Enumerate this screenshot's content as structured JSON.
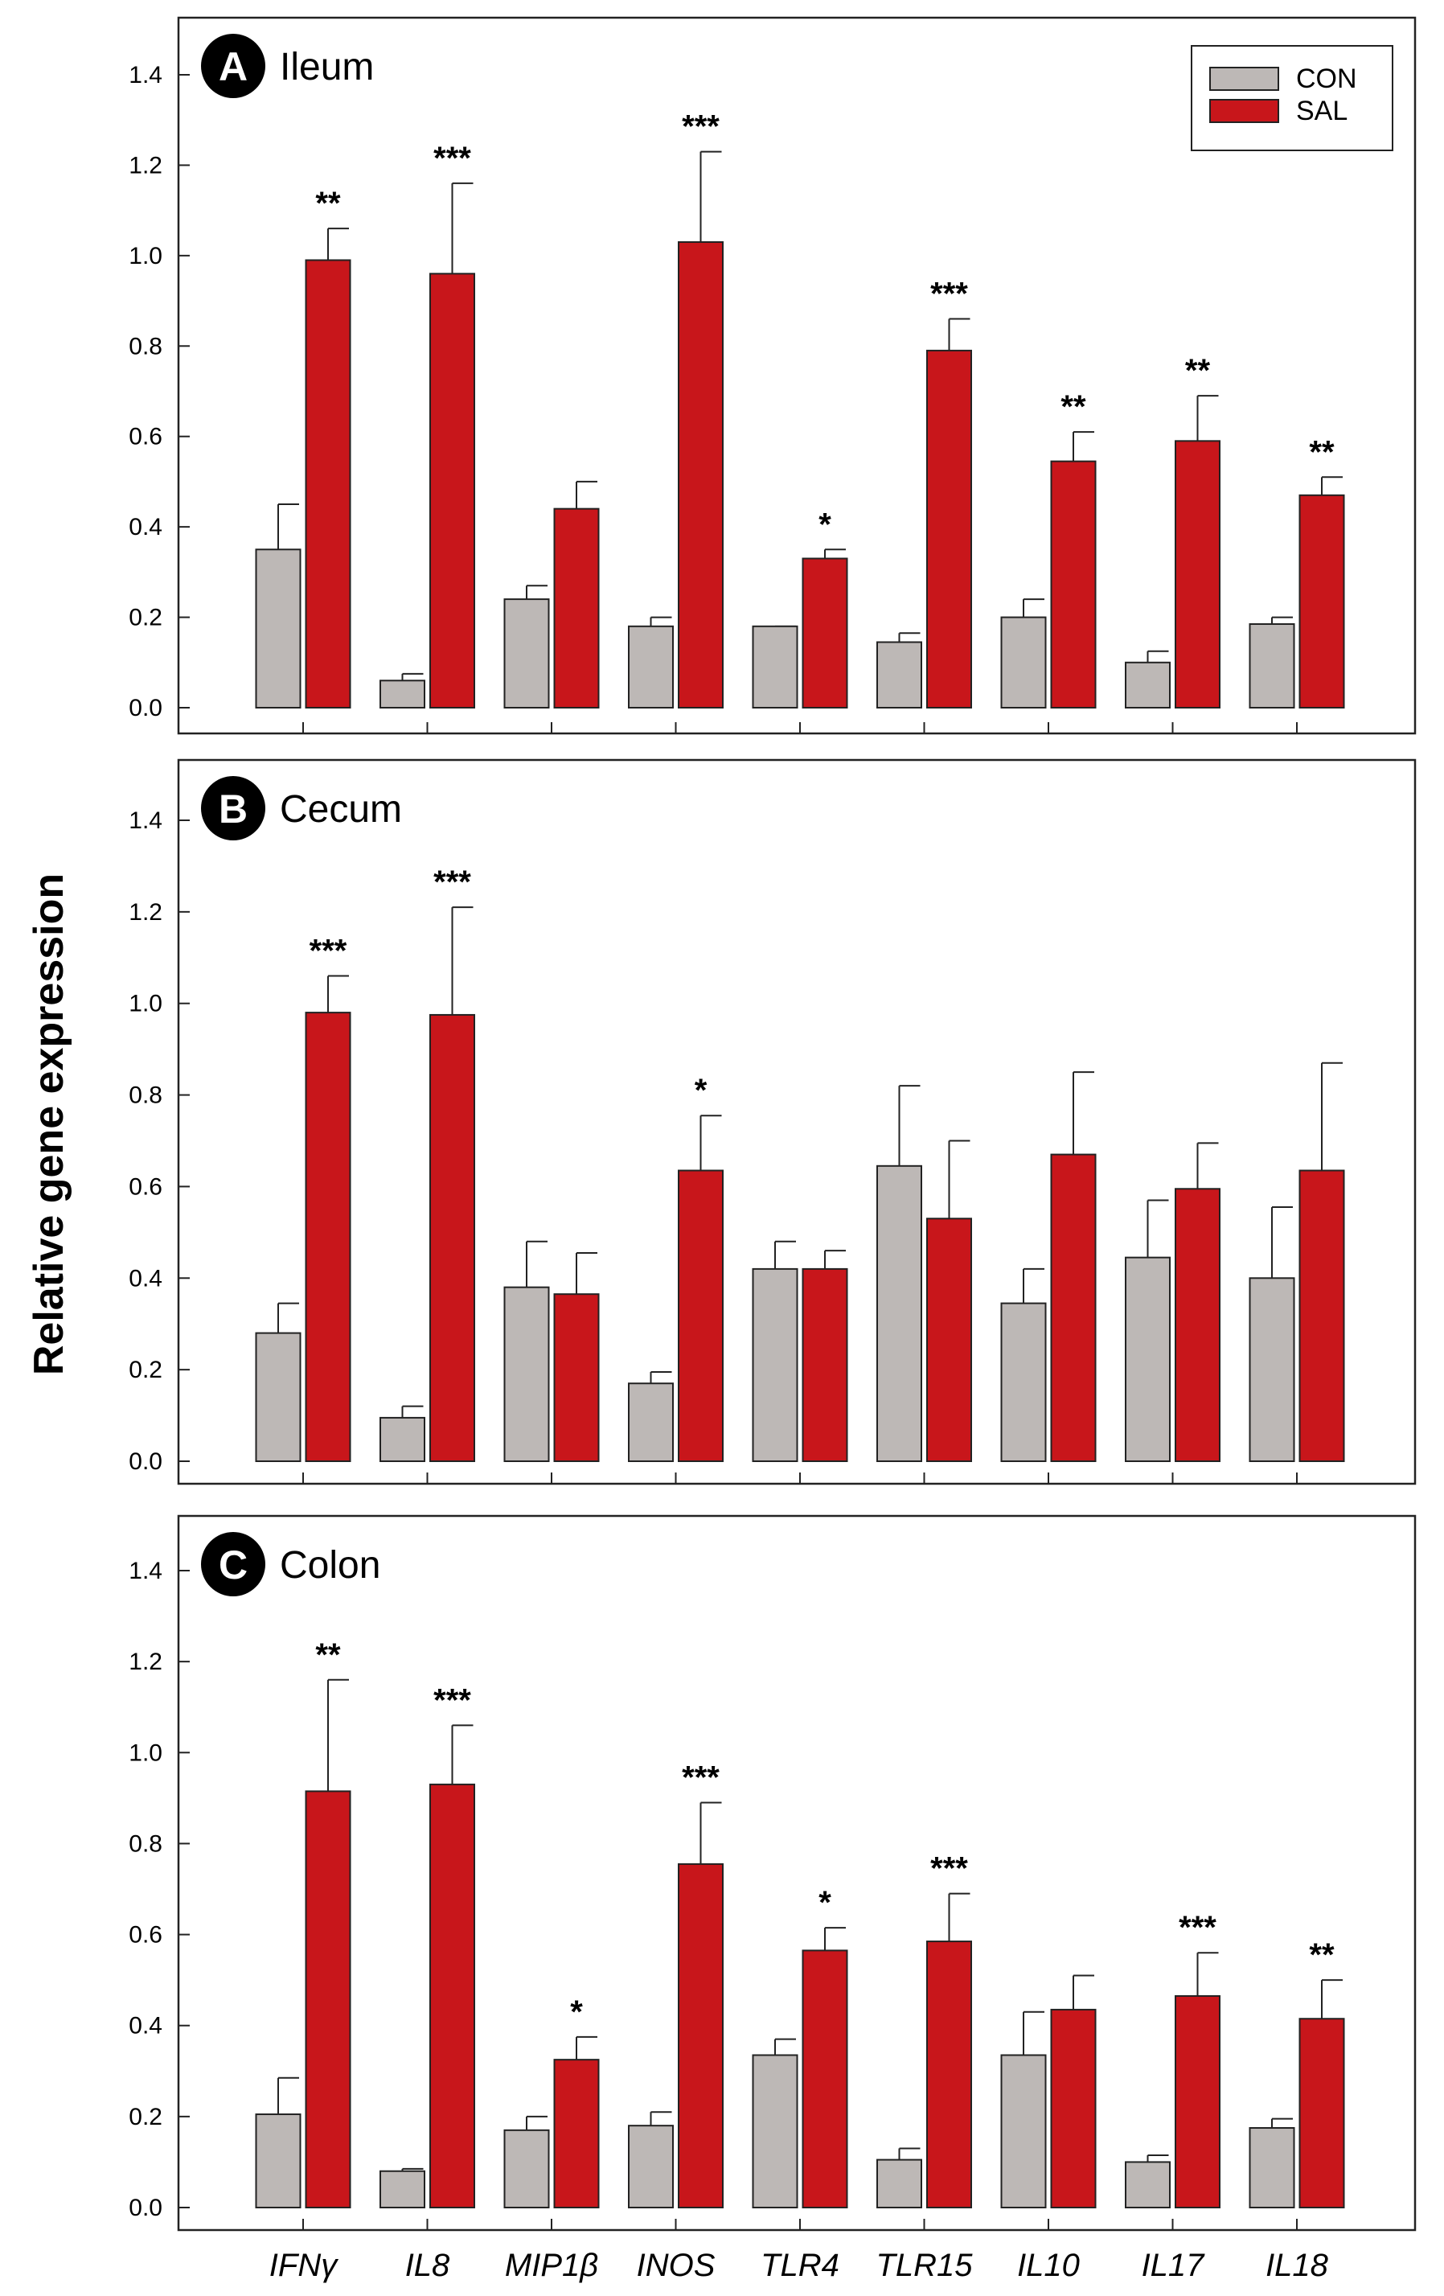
{
  "chart_data": {
    "type": "bar",
    "ylabel": "Relative gene expression",
    "ylim": [
      0,
      1.5
    ],
    "yticks": [
      "0.0",
      "0.2",
      "0.4",
      "0.6",
      "0.8",
      "1.0",
      "1.2",
      "1.4"
    ],
    "categories": [
      "IFNγ",
      "IL8",
      "MIP1β",
      "INOS",
      "TLR4",
      "TLR15",
      "IL10",
      "IL17",
      "IL18"
    ],
    "legend": [
      {
        "name": "CON",
        "color": "#bdb8b6"
      },
      {
        "name": "SAL",
        "color": "#c8161b"
      }
    ],
    "panels": [
      {
        "letter": "A",
        "title": "Ileum",
        "series": [
          {
            "name": "CON",
            "values": [
              0.35,
              0.06,
              0.24,
              0.18,
              0.18,
              0.145,
              0.2,
              0.1,
              0.185
            ],
            "errors": [
              0.45,
              0.075,
              0.27,
              0.2,
              0.18,
              0.165,
              0.24,
              0.125,
              0.2
            ]
          },
          {
            "name": "SAL",
            "values": [
              0.99,
              0.96,
              0.44,
              1.03,
              0.33,
              0.79,
              0.545,
              0.59,
              0.47
            ],
            "errors": [
              1.06,
              1.16,
              0.5,
              1.23,
              0.35,
              0.86,
              0.61,
              0.69,
              0.51
            ]
          }
        ],
        "significance": [
          "**",
          "***",
          "",
          "***",
          "*",
          "***",
          "**",
          "**",
          "**"
        ]
      },
      {
        "letter": "B",
        "title": "Cecum",
        "series": [
          {
            "name": "CON",
            "values": [
              0.28,
              0.095,
              0.38,
              0.17,
              0.42,
              0.645,
              0.345,
              0.445,
              0.4
            ],
            "errors": [
              0.345,
              0.12,
              0.48,
              0.195,
              0.48,
              0.82,
              0.42,
              0.57,
              0.555
            ]
          },
          {
            "name": "SAL",
            "values": [
              0.98,
              0.975,
              0.365,
              0.635,
              0.42,
              0.53,
              0.67,
              0.595,
              0.635
            ],
            "errors": [
              1.06,
              1.21,
              0.455,
              0.755,
              0.46,
              0.7,
              0.85,
              0.695,
              0.87
            ]
          }
        ],
        "significance": [
          "***",
          "***",
          "",
          "*",
          "",
          "",
          "",
          "",
          ""
        ]
      },
      {
        "letter": "C",
        "title": "Colon",
        "series": [
          {
            "name": "CON",
            "values": [
              0.205,
              0.08,
              0.17,
              0.18,
              0.335,
              0.105,
              0.335,
              0.1,
              0.175
            ],
            "errors": [
              0.285,
              0.085,
              0.2,
              0.21,
              0.37,
              0.13,
              0.43,
              0.115,
              0.195
            ]
          },
          {
            "name": "SAL",
            "values": [
              0.915,
              0.93,
              0.325,
              0.755,
              0.565,
              0.585,
              0.435,
              0.465,
              0.415
            ],
            "errors": [
              1.16,
              1.06,
              0.375,
              0.89,
              0.615,
              0.69,
              0.51,
              0.56,
              0.5
            ]
          }
        ],
        "significance": [
          "**",
          "***",
          "*",
          "***",
          "*",
          "***",
          "",
          "***",
          "**"
        ]
      }
    ]
  }
}
